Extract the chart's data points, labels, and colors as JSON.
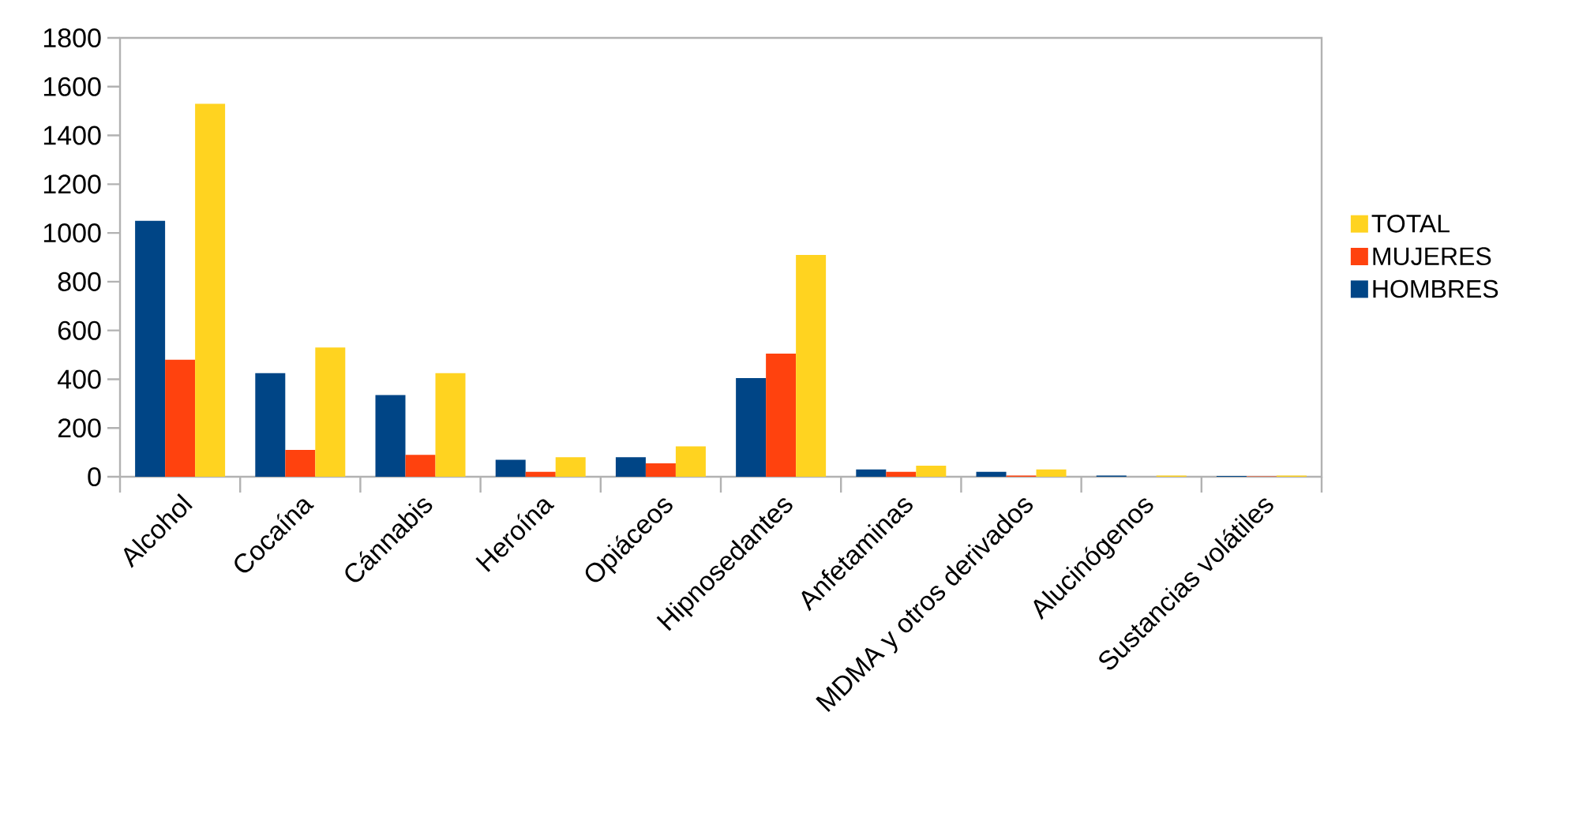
{
  "chart_data": {
    "type": "bar",
    "categories": [
      "Alcohol",
      "Cocaína",
      "Cánnabis",
      "Heroína",
      "Opiáceos",
      "Hipnosedantes",
      "Anfetaminas",
      "MDMA y otros derivados",
      "Alucinógenos",
      "Sustancias volátiles"
    ],
    "series": [
      {
        "name": "HOMBRES",
        "color": "#004586",
        "values": [
          1050,
          425,
          335,
          70,
          80,
          405,
          30,
          20,
          5,
          3
        ]
      },
      {
        "name": "MUJERES",
        "color": "#ff420e",
        "values": [
          480,
          110,
          90,
          20,
          55,
          505,
          20,
          5,
          0,
          2
        ]
      },
      {
        "name": "TOTAL",
        "color": "#ffd320",
        "values": [
          1530,
          530,
          425,
          80,
          125,
          910,
          45,
          30,
          5,
          5
        ]
      }
    ],
    "ylim": [
      0,
      1800
    ],
    "yticks": [
      0,
      200,
      400,
      600,
      800,
      1000,
      1200,
      1400,
      1600,
      1800
    ],
    "grid": false,
    "legend": "right"
  }
}
